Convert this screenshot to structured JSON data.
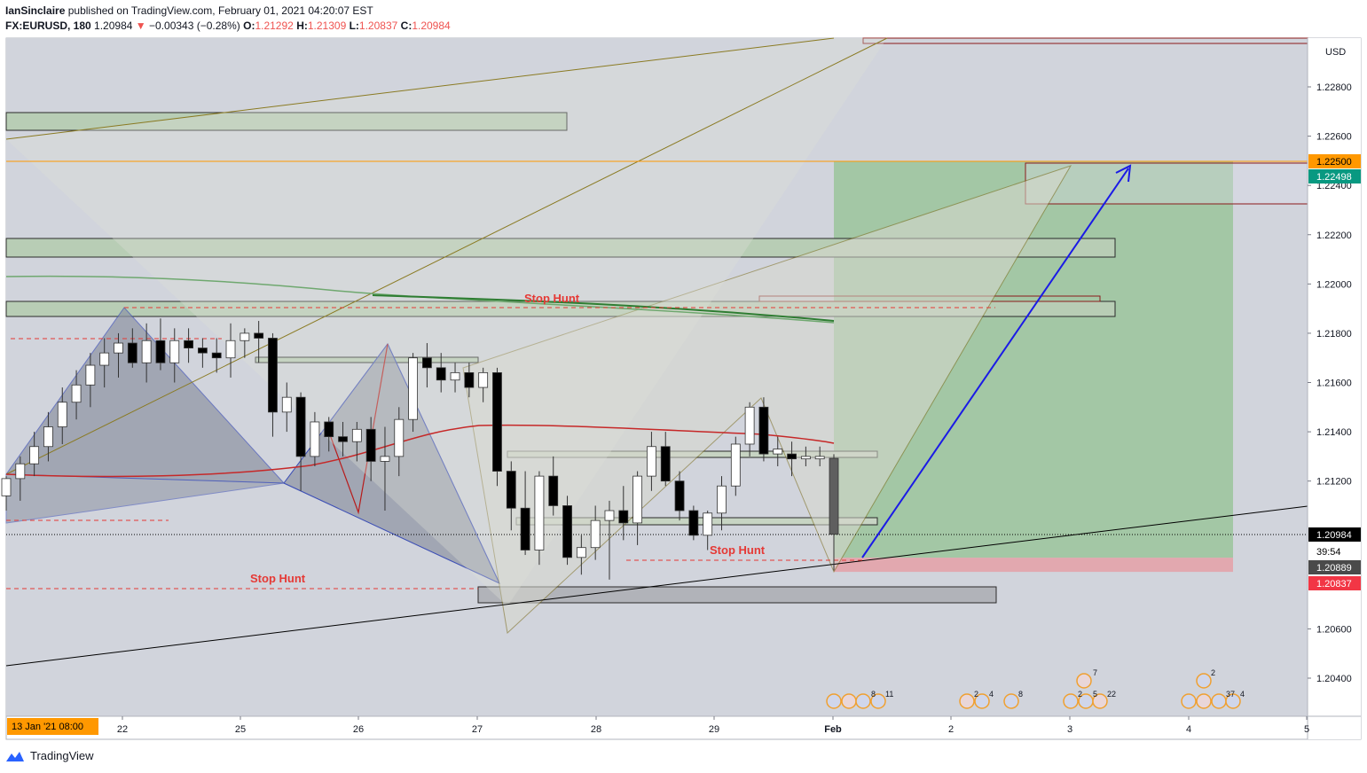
{
  "header": {
    "author": "IanSinclaire",
    "published": "published on TradingView.com, February 01, 2021 04:20:07 EST",
    "symbol": "FX:EURUSD, 180",
    "last": "1.20984",
    "change_arrow": "▼",
    "change": "−0.00343 (−0.28%)",
    "open_label": "O:",
    "open": "1.21292",
    "high_label": "H:",
    "high": "1.21309",
    "low_label": "L:",
    "low": "1.20837",
    "close_label": "C:",
    "close": "1.20984"
  },
  "footer": {
    "brand": "TradingView",
    "icon": "tradingview-logo-icon"
  },
  "colors": {
    "background": "#d1d4dc",
    "candle_up": "#ffffff",
    "candle_down": "#000000",
    "ma_red": "#c62828",
    "ma_green": "#2e7d32",
    "stop_hunt": "#e53935",
    "arrow": "#1a1ae6",
    "profit_zone": "#9bc49b",
    "loss_zone": "#e3a3aa",
    "price_tag_last": "#000000",
    "price_tag_target": "#ff9800",
    "price_tag_tp": "#089981",
    "price_tag_low": "#f23645"
  },
  "chart_data": {
    "type": "candlestick",
    "timeframe": "180",
    "currency": "USD",
    "ylim": [
      1.2025,
      1.2295
    ],
    "y_ticks": [
      "1.20400",
      "1.20600",
      "1.21200",
      "1.21400",
      "1.21600",
      "1.21800",
      "1.22000",
      "1.22200",
      "1.22400",
      "1.22600",
      "1.22800"
    ],
    "x_ticks": [
      "22",
      "25",
      "26",
      "27",
      "28",
      "29",
      "Feb",
      "2",
      "3",
      "4",
      "5"
    ],
    "x_start_label": "13 Jan '21  08:00",
    "candles": [
      {
        "o": 1.2114,
        "h": 1.2122,
        "l": 1.2108,
        "c": 1.2121
      },
      {
        "o": 1.2121,
        "h": 1.213,
        "l": 1.2112,
        "c": 1.2127
      },
      {
        "o": 1.2127,
        "h": 1.214,
        "l": 1.2122,
        "c": 1.2134
      },
      {
        "o": 1.2134,
        "h": 1.2148,
        "l": 1.2128,
        "c": 1.2142
      },
      {
        "o": 1.2142,
        "h": 1.2158,
        "l": 1.2135,
        "c": 1.2152
      },
      {
        "o": 1.2152,
        "h": 1.2165,
        "l": 1.2145,
        "c": 1.2159
      },
      {
        "o": 1.2159,
        "h": 1.2172,
        "l": 1.215,
        "c": 1.2167
      },
      {
        "o": 1.2167,
        "h": 1.2178,
        "l": 1.2158,
        "c": 1.2172
      },
      {
        "o": 1.2172,
        "h": 1.218,
        "l": 1.2162,
        "c": 1.2176
      },
      {
        "o": 1.2176,
        "h": 1.2182,
        "l": 1.2166,
        "c": 1.2168
      },
      {
        "o": 1.2168,
        "h": 1.2184,
        "l": 1.216,
        "c": 1.2177
      },
      {
        "o": 1.2177,
        "h": 1.2186,
        "l": 1.2165,
        "c": 1.2168
      },
      {
        "o": 1.2168,
        "h": 1.2182,
        "l": 1.216,
        "c": 1.2177
      },
      {
        "o": 1.2177,
        "h": 1.2182,
        "l": 1.2168,
        "c": 1.2174
      },
      {
        "o": 1.2174,
        "h": 1.2178,
        "l": 1.2166,
        "c": 1.2172
      },
      {
        "o": 1.2172,
        "h": 1.2178,
        "l": 1.2164,
        "c": 1.217
      },
      {
        "o": 1.217,
        "h": 1.2184,
        "l": 1.2162,
        "c": 1.2177
      },
      {
        "o": 1.2177,
        "h": 1.2182,
        "l": 1.217,
        "c": 1.218
      },
      {
        "o": 1.218,
        "h": 1.2185,
        "l": 1.2168,
        "c": 1.2178
      },
      {
        "o": 1.2178,
        "h": 1.218,
        "l": 1.2138,
        "c": 1.2148
      },
      {
        "o": 1.2148,
        "h": 1.216,
        "l": 1.214,
        "c": 1.2154
      },
      {
        "o": 1.2154,
        "h": 1.2156,
        "l": 1.2116,
        "c": 1.213
      },
      {
        "o": 1.213,
        "h": 1.2148,
        "l": 1.2126,
        "c": 1.2144
      },
      {
        "o": 1.2144,
        "h": 1.2146,
        "l": 1.2132,
        "c": 1.2138
      },
      {
        "o": 1.2138,
        "h": 1.2144,
        "l": 1.213,
        "c": 1.2136
      },
      {
        "o": 1.2136,
        "h": 1.2144,
        "l": 1.2128,
        "c": 1.2141
      },
      {
        "o": 1.2141,
        "h": 1.2146,
        "l": 1.212,
        "c": 1.2128
      },
      {
        "o": 1.2128,
        "h": 1.2142,
        "l": 1.2108,
        "c": 1.213
      },
      {
        "o": 1.213,
        "h": 1.215,
        "l": 1.2122,
        "c": 1.2145
      },
      {
        "o": 1.2145,
        "h": 1.2172,
        "l": 1.214,
        "c": 1.217
      },
      {
        "o": 1.217,
        "h": 1.2176,
        "l": 1.2158,
        "c": 1.2166
      },
      {
        "o": 1.2166,
        "h": 1.2172,
        "l": 1.2156,
        "c": 1.2161
      },
      {
        "o": 1.2161,
        "h": 1.2168,
        "l": 1.2156,
        "c": 1.2164
      },
      {
        "o": 1.2164,
        "h": 1.2168,
        "l": 1.2154,
        "c": 1.2158
      },
      {
        "o": 1.2158,
        "h": 1.2166,
        "l": 1.2152,
        "c": 1.2164
      },
      {
        "o": 1.2164,
        "h": 1.2166,
        "l": 1.2118,
        "c": 1.2124
      },
      {
        "o": 1.2124,
        "h": 1.2128,
        "l": 1.21,
        "c": 1.2109
      },
      {
        "o": 1.2109,
        "h": 1.2124,
        "l": 1.209,
        "c": 1.2092
      },
      {
        "o": 1.2092,
        "h": 1.2124,
        "l": 1.2086,
        "c": 1.2122
      },
      {
        "o": 1.2122,
        "h": 1.213,
        "l": 1.2106,
        "c": 1.211
      },
      {
        "o": 1.211,
        "h": 1.2114,
        "l": 1.2086,
        "c": 1.2089
      },
      {
        "o": 1.2089,
        "h": 1.2098,
        "l": 1.2082,
        "c": 1.2093
      },
      {
        "o": 1.2093,
        "h": 1.211,
        "l": 1.2088,
        "c": 1.2104
      },
      {
        "o": 1.2104,
        "h": 1.2112,
        "l": 1.208,
        "c": 1.2108
      },
      {
        "o": 1.2108,
        "h": 1.2118,
        "l": 1.2096,
        "c": 1.2103
      },
      {
        "o": 1.2103,
        "h": 1.2124,
        "l": 1.2094,
        "c": 1.2122
      },
      {
        "o": 1.2122,
        "h": 1.214,
        "l": 1.2116,
        "c": 1.2134
      },
      {
        "o": 1.2134,
        "h": 1.214,
        "l": 1.2118,
        "c": 1.212
      },
      {
        "o": 1.212,
        "h": 1.2124,
        "l": 1.2104,
        "c": 1.2108
      },
      {
        "o": 1.2108,
        "h": 1.211,
        "l": 1.2096,
        "c": 1.2098
      },
      {
        "o": 1.2098,
        "h": 1.2108,
        "l": 1.2092,
        "c": 1.2107
      },
      {
        "o": 1.2107,
        "h": 1.2122,
        "l": 1.21,
        "c": 1.2118
      },
      {
        "o": 1.2118,
        "h": 1.2138,
        "l": 1.2114,
        "c": 1.2135
      },
      {
        "o": 1.2135,
        "h": 1.2152,
        "l": 1.213,
        "c": 1.215
      },
      {
        "o": 1.215,
        "h": 1.2154,
        "l": 1.2128,
        "c": 1.2131
      },
      {
        "o": 1.2131,
        "h": 1.2138,
        "l": 1.2126,
        "c": 1.2133
      },
      {
        "o": 1.2131,
        "h": 1.2136,
        "l": 1.2122,
        "c": 1.2129
      },
      {
        "o": 1.2129,
        "h": 1.2134,
        "l": 1.2126,
        "c": 1.213
      },
      {
        "o": 1.2129,
        "h": 1.2134,
        "l": 1.2126,
        "c": 1.213
      },
      {
        "o": 1.21292,
        "h": 1.21309,
        "l": 1.20837,
        "c": 1.20984
      }
    ],
    "price_tags": [
      {
        "value": "1.22500",
        "role": "target"
      },
      {
        "value": "1.22498",
        "role": "take-profit"
      },
      {
        "value": "1.20984",
        "role": "last-price"
      },
      {
        "value": "39:54",
        "role": "bar-countdown"
      },
      {
        "value": "1.20889",
        "role": "entry"
      },
      {
        "value": "1.20837",
        "role": "low"
      }
    ],
    "annotations": [
      {
        "text": "Stop Hunt",
        "price": 1.2187
      },
      {
        "text": "Stop Hunt",
        "price": 1.2089
      },
      {
        "text": "Stop Hunt",
        "price": 1.2077
      }
    ],
    "position": {
      "entry": 1.20889,
      "target": 1.22498,
      "stop": 1.20837
    },
    "event_counts": [
      "8",
      "11",
      "2",
      "4",
      "8",
      "7",
      "2",
      "5",
      "22",
      "2",
      "37",
      "4"
    ]
  }
}
